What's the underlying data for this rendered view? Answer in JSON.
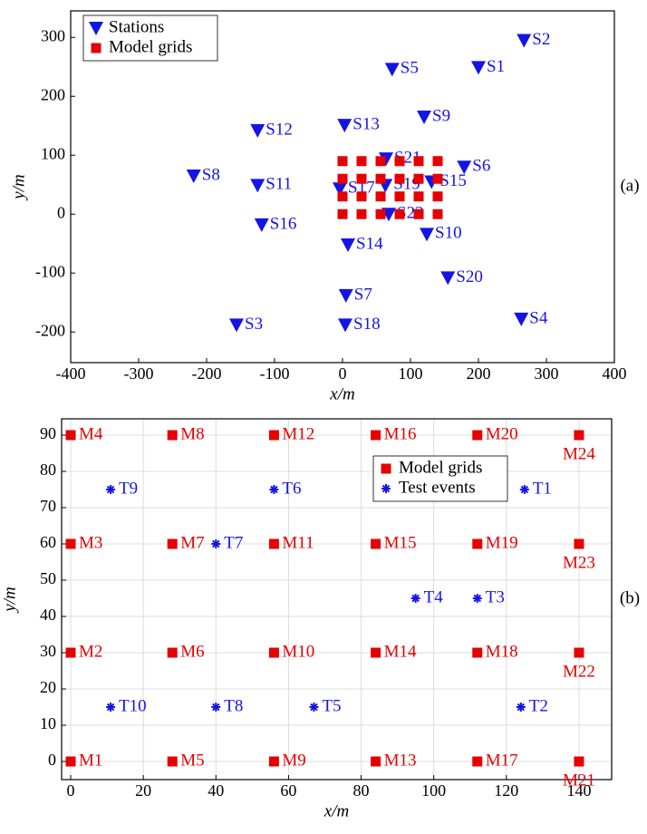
{
  "chart_data": [
    {
      "type": "scatter",
      "panel_label": "(a)",
      "xlabel": "x/m",
      "ylabel": "y/m",
      "xlim": [
        -400,
        400
      ],
      "ylim": [
        -252,
        345
      ],
      "xticks": [
        -400,
        -300,
        -200,
        -100,
        0,
        100,
        200,
        300,
        400
      ],
      "yticks": [
        -200,
        -100,
        0,
        100,
        200,
        300
      ],
      "grid": false,
      "legend": "upper left",
      "series": [
        {
          "name": "Stations",
          "marker": "triangle-down",
          "color": "#1414e6",
          "labels": [
            "S1",
            "S2",
            "S3",
            "S4",
            "S5",
            "S6",
            "S7",
            "S8",
            "S9",
            "S10",
            "S11",
            "S12",
            "S13",
            "S14",
            "S15",
            "S16",
            "S17",
            "S18",
            "S19",
            "S20",
            "S21",
            "S22"
          ],
          "x": [
            200,
            267,
            -156,
            263,
            73,
            179,
            5,
            -219,
            120,
            124,
            -125,
            -125,
            3,
            8,
            131,
            -119,
            -4,
            4,
            63,
            155,
            64,
            68
          ],
          "values": [
            249,
            295,
            -188,
            -178,
            246,
            80,
            -138,
            65,
            165,
            -34,
            49,
            142,
            151,
            -52,
            55,
            -18,
            43,
            -188,
            49,
            -108,
            94,
            0
          ]
        },
        {
          "name": "Model grids",
          "marker": "square",
          "color": "#e60000",
          "x": [
            0,
            0,
            0,
            0,
            28,
            28,
            28,
            28,
            56,
            56,
            56,
            56,
            84,
            84,
            84,
            84,
            112,
            112,
            112,
            112,
            140,
            140,
            140,
            140
          ],
          "values": [
            0,
            30,
            60,
            90,
            0,
            30,
            60,
            90,
            0,
            30,
            60,
            90,
            0,
            30,
            60,
            90,
            0,
            30,
            60,
            90,
            0,
            30,
            60,
            90
          ]
        }
      ]
    },
    {
      "type": "scatter",
      "panel_label": "(b)",
      "xlabel": "x/m",
      "ylabel": "y/m",
      "xlim": [
        -2.5,
        149
      ],
      "ylim": [
        -5,
        94.5
      ],
      "xticks": [
        0,
        20,
        40,
        60,
        80,
        100,
        120,
        140
      ],
      "yticks": [
        0,
        10,
        20,
        30,
        40,
        50,
        60,
        70,
        80,
        90
      ],
      "grid": true,
      "legend": "upper right",
      "series": [
        {
          "name": "Model grids",
          "marker": "square",
          "color": "#e60000",
          "labels": [
            "M1",
            "M2",
            "M3",
            "M4",
            "M5",
            "M6",
            "M7",
            "M8",
            "M9",
            "M10",
            "M11",
            "M12",
            "M13",
            "M14",
            "M15",
            "M16",
            "M17",
            "M18",
            "M19",
            "M20",
            "M21",
            "M22",
            "M23",
            "M24"
          ],
          "x": [
            0,
            0,
            0,
            0,
            28,
            28,
            28,
            28,
            56,
            56,
            56,
            56,
            84,
            84,
            84,
            84,
            112,
            112,
            112,
            112,
            140,
            140,
            140,
            140
          ],
          "values": [
            0,
            30,
            60,
            90,
            0,
            30,
            60,
            90,
            0,
            30,
            60,
            90,
            0,
            30,
            60,
            90,
            0,
            30,
            60,
            90,
            0,
            30,
            60,
            90
          ]
        },
        {
          "name": "Test events",
          "marker": "asterisk",
          "color": "#1414e6",
          "labels": [
            "T1",
            "T2",
            "T3",
            "T4",
            "T5",
            "T6",
            "T7",
            "T8",
            "T9",
            "T10"
          ],
          "x": [
            125,
            124,
            112,
            95,
            67,
            56,
            40,
            40,
            11,
            11
          ],
          "values": [
            75,
            15,
            45,
            45,
            15,
            75,
            60,
            15,
            75,
            15
          ]
        }
      ]
    }
  ]
}
